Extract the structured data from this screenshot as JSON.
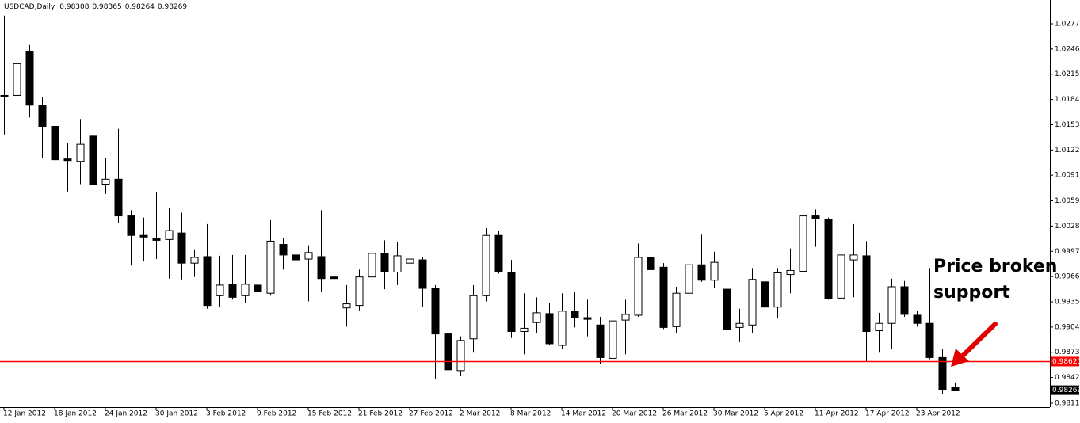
{
  "chart_data": {
    "type": "candlestick",
    "title": "USDCAD,Daily",
    "categories": [
      "12 Jan 2012",
      null,
      null,
      null,
      "18 Jan 2012",
      null,
      null,
      null,
      "24 Jan 2012",
      null,
      null,
      null,
      "30 Jan 2012",
      null,
      null,
      null,
      "3 Feb 2012",
      null,
      null,
      null,
      "9 Feb 2012",
      null,
      null,
      null,
      "15 Feb 2012",
      null,
      null,
      null,
      "21 Feb 2012",
      null,
      null,
      null,
      "27 Feb 2012",
      null,
      null,
      null,
      "2 Mar 2012",
      null,
      null,
      null,
      "8 Mar 2012",
      null,
      null,
      null,
      "14 Mar 2012",
      null,
      null,
      null,
      "20 Mar 2012",
      null,
      null,
      null,
      "26 Mar 2012",
      null,
      null,
      null,
      "30 Mar 2012",
      null,
      null,
      null,
      "5 Apr 2012",
      null,
      null,
      null,
      "11 Apr 2012",
      null,
      null,
      null,
      "17 Apr 2012",
      null,
      null,
      null,
      "23 Apr 2012",
      null,
      null,
      null
    ],
    "open": [
      1.0189,
      1.0189,
      1.0243,
      1.0177,
      1.0151,
      1.0111,
      1.0108,
      1.0139,
      1.008,
      1.0086,
      1.0041,
      1.0017,
      1.0013,
      1.0012,
      1.002,
      0.9983,
      0.9991,
      0.9943,
      0.9957,
      0.9943,
      0.9956,
      0.9946,
      1.0006,
      0.9993,
      0.9988,
      0.9991,
      0.9966,
      0.9928,
      0.9931,
      0.9966,
      0.9995,
      0.9972,
      0.9983,
      0.9987,
      0.9952,
      0.9896,
      0.9851,
      0.989,
      0.9943,
      1.0017,
      0.9971,
      0.9899,
      0.991,
      0.9921,
      0.9882,
      0.9924,
      0.9916,
      0.9907,
      0.9866,
      0.9913,
      0.9919,
      0.999,
      0.9978,
      0.9905,
      0.9946,
      0.9981,
      0.9962,
      0.9951,
      0.9904,
      0.9907,
      0.996,
      0.9929,
      0.9969,
      0.9973,
      1.0041,
      1.0037,
      0.994,
      0.9987,
      0.9992,
      0.99,
      0.9909,
      0.9954,
      0.9919,
      0.9909,
      0.9867,
      0.98308
    ],
    "high": [
      1.0287,
      1.0282,
      1.0251,
      1.0187,
      1.0165,
      1.0131,
      1.016,
      1.016,
      1.0112,
      1.0148,
      1.0048,
      1.0039,
      1.007,
      1.0051,
      1.0045,
      1.0,
      1.0031,
      0.9992,
      0.9993,
      0.9993,
      0.999,
      1.0036,
      1.0014,
      1.0025,
      1.0005,
      1.0048,
      0.998,
      0.9956,
      0.9975,
      1.0018,
      1.0011,
      1.0009,
      1.0047,
      0.999,
      0.9956,
      0.9897,
      0.9893,
      0.9956,
      1.0026,
      1.0023,
      0.9987,
      0.9946,
      0.9941,
      0.9934,
      0.9946,
      0.9948,
      0.9938,
      0.9917,
      0.9969,
      0.9938,
      1.0007,
      1.0033,
      0.9983,
      0.9954,
      1.0008,
      1.0018,
      0.9997,
      0.997,
      0.9927,
      0.9977,
      0.9997,
      0.9977,
      1.0001,
      1.0044,
      1.0049,
      1.0039,
      1.0032,
      1.0031,
      1.001,
      0.9922,
      0.9964,
      0.9961,
      0.9924,
      0.9977,
      0.9878,
      0.98365
    ],
    "low": [
      1.0141,
      1.0162,
      1.0162,
      1.0112,
      1.0109,
      1.0071,
      1.008,
      1.005,
      1.0068,
      1.0032,
      0.998,
      0.9985,
      0.9988,
      0.9964,
      0.9963,
      0.9966,
      0.9927,
      0.9929,
      0.9938,
      0.9934,
      0.9924,
      0.9943,
      0.9975,
      0.9978,
      0.9936,
      0.9948,
      0.9948,
      0.9905,
      0.9925,
      0.9956,
      0.9951,
      0.9956,
      0.9975,
      0.9929,
      0.9841,
      0.9839,
      0.9844,
      0.9873,
      0.9936,
      0.997,
      0.9891,
      0.9871,
      0.9897,
      0.9882,
      0.9878,
      0.9904,
      0.9893,
      0.9859,
      0.9861,
      0.9871,
      0.9917,
      0.997,
      0.9902,
      0.9897,
      0.9944,
      0.996,
      0.9952,
      0.9888,
      0.9886,
      0.9897,
      0.9925,
      0.9915,
      0.9946,
      0.9969,
      1.0003,
      0.9938,
      0.9931,
      0.9941,
      0.9862,
      0.9873,
      0.9877,
      0.9917,
      0.9905,
      0.9865,
      0.9822,
      0.98264
    ],
    "close": [
      1.0189,
      1.0228,
      1.0177,
      1.0151,
      1.011,
      1.0109,
      1.0129,
      1.008,
      1.0086,
      1.0041,
      1.0017,
      1.0015,
      1.0011,
      1.0023,
      0.9983,
      0.999,
      0.9931,
      0.9956,
      0.9941,
      0.9957,
      0.9948,
      1.001,
      0.9993,
      0.9987,
      0.9996,
      0.9964,
      0.9964,
      0.9933,
      0.9966,
      0.9995,
      0.9972,
      0.9992,
      0.9988,
      0.9952,
      0.9896,
      0.9852,
      0.9888,
      0.9943,
      1.0017,
      0.9973,
      0.9899,
      0.9903,
      0.9922,
      0.9884,
      0.9924,
      0.9916,
      0.9914,
      0.9867,
      0.9912,
      0.992,
      0.999,
      0.9975,
      0.9904,
      0.9946,
      0.9981,
      0.9962,
      0.9984,
      0.9901,
      0.9909,
      0.9963,
      0.9929,
      0.9971,
      0.9974,
      1.0041,
      1.0038,
      0.9939,
      0.9993,
      0.9993,
      0.9899,
      0.9909,
      0.9954,
      0.992,
      0.9909,
      0.9867,
      0.9828,
      0.98269
    ],
    "up_color": "#ffffff",
    "down_color": "#000000",
    "ylim": [
      0.98061,
      1.03062
    ],
    "yticks": [
      {
        "value": 1.0277,
        "label": "1.02770"
      },
      {
        "value": 1.0246,
        "label": "1.02460"
      },
      {
        "value": 1.0215,
        "label": "1.02150"
      },
      {
        "value": 1.0184,
        "label": "1.01840"
      },
      {
        "value": 1.0153,
        "label": "1.01530"
      },
      {
        "value": 1.0122,
        "label": "1.01220"
      },
      {
        "value": 1.0091,
        "label": "1.00910"
      },
      1.00595,
      1.00285,
      0.99975,
      0.99665,
      0.99355,
      0.99045,
      0.98735,
      0.98425,
      {
        "value": 0.9811,
        "label": "0.98110"
      }
    ],
    "grid": false,
    "support_level": 0.98621,
    "support_color": "#ff0000",
    "annotation": [
      "Price broken",
      "support"
    ]
  }
}
